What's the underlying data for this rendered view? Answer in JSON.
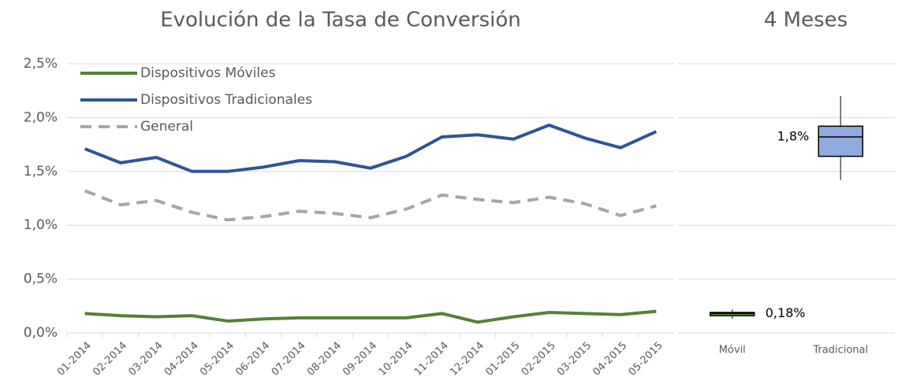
{
  "chart_data": [
    {
      "type": "line",
      "title": "Evolución de la Tasa de Conversión",
      "categories": [
        "01-2014",
        "02-2014",
        "03-2014",
        "04-2014",
        "05-2014",
        "06-2014",
        "07-2014",
        "08-2014",
        "09-2014",
        "10-2014",
        "11-2014",
        "12-2014",
        "01-2015",
        "02-2015",
        "03-2015",
        "04-2015",
        "05-2015"
      ],
      "series": [
        {
          "name": "Dispositivos Móviles",
          "color": "#548235",
          "style": "solid",
          "values": [
            0.18,
            0.16,
            0.15,
            0.16,
            0.11,
            0.13,
            0.14,
            0.14,
            0.14,
            0.14,
            0.18,
            0.1,
            0.15,
            0.19,
            0.18,
            0.17,
            0.2
          ]
        },
        {
          "name": "Dispositivos Tradicionales",
          "color": "#2f5597",
          "style": "solid",
          "values": [
            1.71,
            1.58,
            1.63,
            1.5,
            1.5,
            1.54,
            1.6,
            1.59,
            1.53,
            1.64,
            1.82,
            1.84,
            1.8,
            1.93,
            1.81,
            1.72,
            1.87
          ]
        },
        {
          "name": "General",
          "color": "#a6a6a6",
          "style": "dashed",
          "values": [
            1.32,
            1.19,
            1.23,
            1.12,
            1.05,
            1.08,
            1.13,
            1.11,
            1.07,
            1.15,
            1.28,
            1.24,
            1.21,
            1.26,
            1.2,
            1.09,
            1.18
          ]
        }
      ],
      "ylim": [
        0,
        2.5
      ],
      "yticks": [
        {
          "value": 0,
          "label": "0,0%"
        },
        {
          "value": 0.5,
          "label": "0,5%"
        },
        {
          "value": 1,
          "label": "1,0%"
        },
        {
          "value": 1.5,
          "label": "1,5%"
        },
        {
          "value": 2,
          "label": "2,0%"
        },
        {
          "value": 2.5,
          "label": "2,5%"
        }
      ],
      "grid": true,
      "legend": "upper left"
    },
    {
      "type": "box",
      "title": "4 Meses",
      "categories": [
        "Móvil",
        "Tradicional"
      ],
      "boxes": [
        {
          "min": 0.13,
          "q1": 0.16,
          "median": 0.18,
          "q3": 0.19,
          "max": 0.22,
          "color": "#70ad47"
        },
        {
          "min": 1.42,
          "q1": 1.64,
          "median": 1.82,
          "q3": 1.92,
          "max": 2.2,
          "color": "#8faadc"
        }
      ],
      "value_labels": [
        "0,18%",
        "1,8%"
      ],
      "ylim": [
        0,
        2.5
      ],
      "yticks": [
        0,
        0.5,
        1,
        1.5,
        2,
        2.5
      ],
      "grid": true
    }
  ]
}
